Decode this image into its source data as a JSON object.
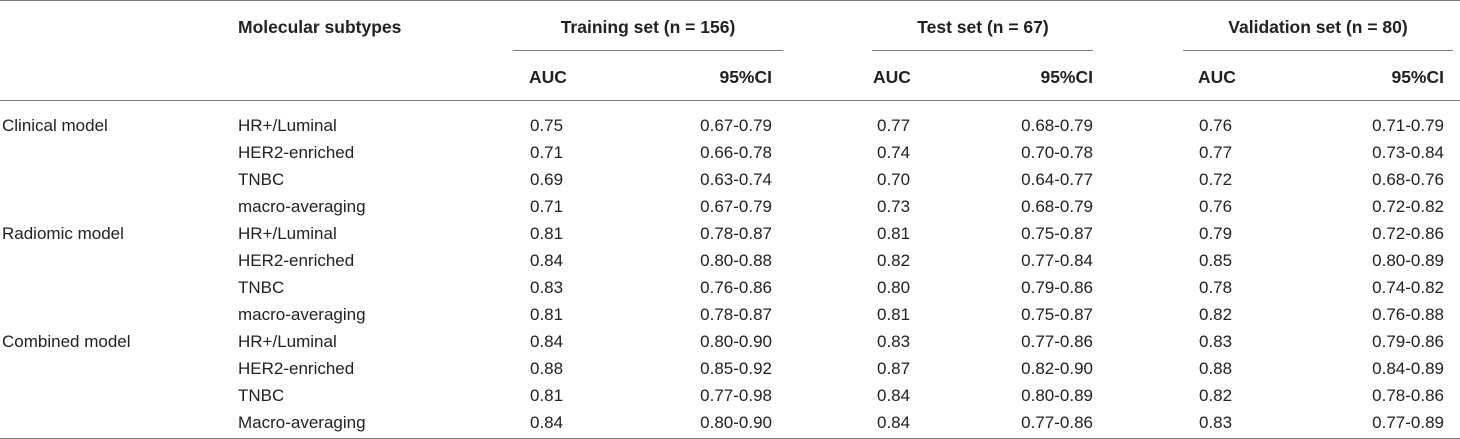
{
  "table": {
    "header": {
      "subtypes_label": "Molecular subtypes",
      "groups": [
        "Training set (n = 156)",
        "Test set (n = 67)",
        "Validation set (n = 80)"
      ],
      "auc_label": "AUC",
      "ci_label": "95%CI"
    },
    "rows": [
      {
        "model": "Clinical model",
        "subtype": "HR+/Luminal",
        "cells": [
          "0.75",
          "0.67-0.79",
          "0.77",
          "0.68-0.79",
          "0.76",
          "0.71-0.79"
        ]
      },
      {
        "model": "",
        "subtype": "HER2-enriched",
        "cells": [
          "0.71",
          "0.66-0.78",
          "0.74",
          "0.70-0.78",
          "0.77",
          "0.73-0.84"
        ]
      },
      {
        "model": "",
        "subtype": "TNBC",
        "cells": [
          "0.69",
          "0.63-0.74",
          "0.70",
          "0.64-0.77",
          "0.72",
          "0.68-0.76"
        ]
      },
      {
        "model": "",
        "subtype": "macro-averaging",
        "cells": [
          "0.71",
          "0.67-0.79",
          "0.73",
          "0.68-0.79",
          "0.76",
          "0.72-0.82"
        ]
      },
      {
        "model": "Radiomic model",
        "subtype": "HR+/Luminal",
        "cells": [
          "0.81",
          "0.78-0.87",
          "0.81",
          "0.75-0.87",
          "0.79",
          "0.72-0.86"
        ]
      },
      {
        "model": "",
        "subtype": "HER2-enriched",
        "cells": [
          "0.84",
          "0.80-0.88",
          "0.82",
          "0.77-0.84",
          "0.85",
          "0.80-0.89"
        ]
      },
      {
        "model": "",
        "subtype": "TNBC",
        "cells": [
          "0.83",
          "0.76-0.86",
          "0.80",
          "0.79-0.86",
          "0.78",
          "0.74-0.82"
        ]
      },
      {
        "model": "",
        "subtype": "macro-averaging",
        "cells": [
          "0.81",
          "0.78-0.87",
          "0.81",
          "0.75-0.87",
          "0.82",
          "0.76-0.88"
        ]
      },
      {
        "model": "Combined model",
        "subtype": "HR+/Luminal",
        "cells": [
          "0.84",
          "0.80-0.90",
          "0.83",
          "0.77-0.86",
          "0.83",
          "0.79-0.86"
        ]
      },
      {
        "model": "",
        "subtype": "HER2-enriched",
        "cells": [
          "0.88",
          "0.85-0.92",
          "0.87",
          "0.82-0.90",
          "0.88",
          "0.84-0.89"
        ]
      },
      {
        "model": "",
        "subtype": "TNBC",
        "cells": [
          "0.81",
          "0.77-0.98",
          "0.84",
          "0.80-0.89",
          "0.82",
          "0.78-0.86"
        ]
      },
      {
        "model": "",
        "subtype": "Macro-averaging",
        "cells": [
          "0.84",
          "0.80-0.90",
          "0.84",
          "0.77-0.86",
          "0.83",
          "0.77-0.89"
        ]
      }
    ]
  }
}
